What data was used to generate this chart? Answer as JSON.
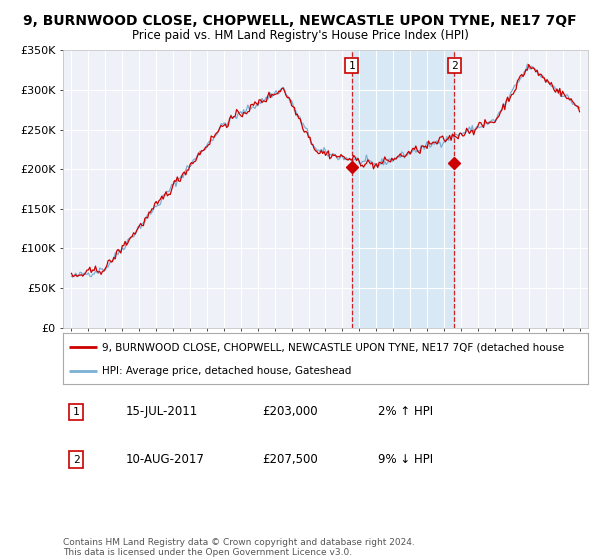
{
  "title": "9, BURNWOOD CLOSE, CHOPWELL, NEWCASTLE UPON TYNE, NE17 7QF",
  "subtitle": "Price paid vs. HM Land Registry's House Price Index (HPI)",
  "legend_line1": "9, BURNWOOD CLOSE, CHOPWELL, NEWCASTLE UPON TYNE, NE17 7QF (detached house",
  "legend_line2": "HPI: Average price, detached house, Gateshead",
  "annotation1_label": "1",
  "annotation1_date": "15-JUL-2011",
  "annotation1_price": "£203,000",
  "annotation1_hpi": "2% ↑ HPI",
  "annotation1_year": 2011.54,
  "annotation1_value": 203000,
  "annotation2_label": "2",
  "annotation2_date": "10-AUG-2017",
  "annotation2_price": "£207,500",
  "annotation2_hpi": "9% ↓ HPI",
  "annotation2_year": 2017.61,
  "annotation2_value": 207500,
  "footer": "Contains HM Land Registry data © Crown copyright and database right 2024.\nThis data is licensed under the Open Government Licence v3.0.",
  "ylim": [
    0,
    350000
  ],
  "yticks": [
    0,
    50000,
    100000,
    150000,
    200000,
    250000,
    300000,
    350000
  ],
  "xlim_start": 1994.5,
  "xlim_end": 2025.5,
  "hpi_color": "#7bafd4",
  "hpi_fill_color": "#d6e8f5",
  "sold_color": "#cc0000",
  "vline_color": "#cc0000",
  "background_color": "#ffffff",
  "plot_bg_color": "#eef2f8",
  "grid_color": "#ffffff",
  "title_fontsize": 10,
  "subtitle_fontsize": 8.5
}
